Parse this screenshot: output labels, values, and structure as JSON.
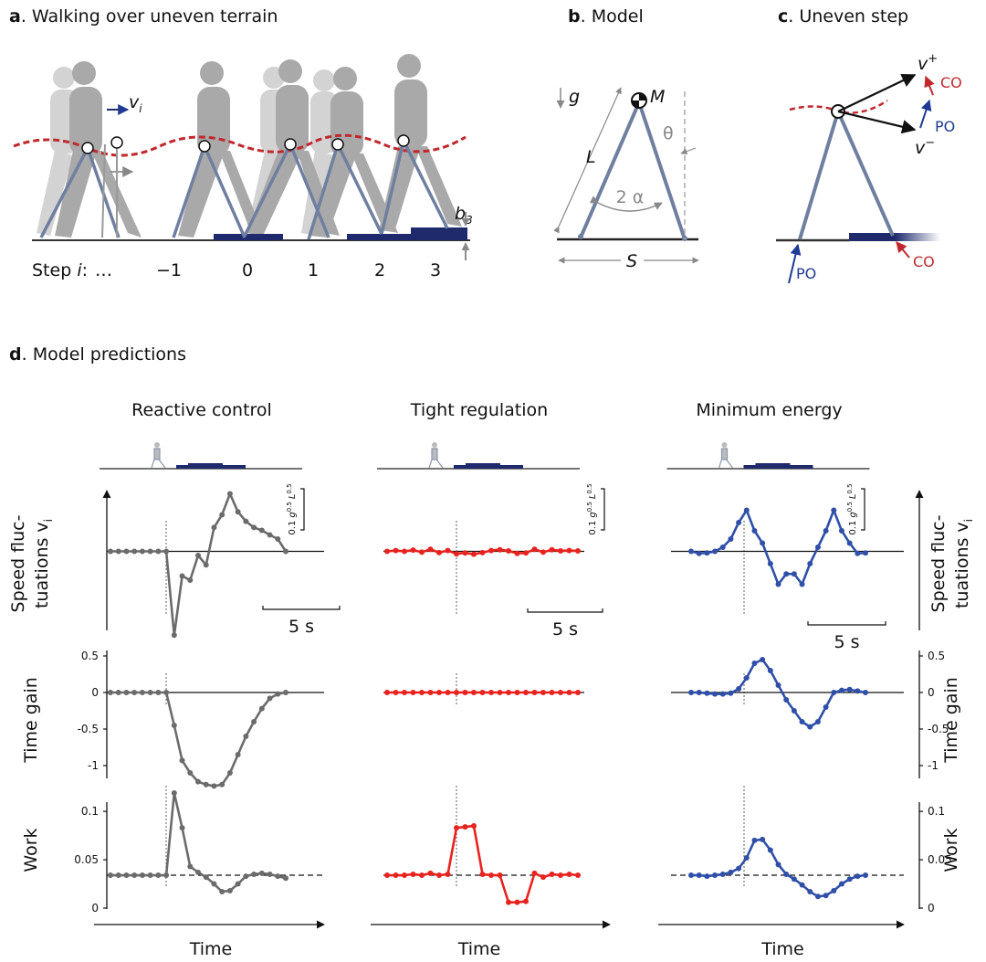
{
  "panels": {
    "a": {
      "letter": "a",
      "title": ". Walking over uneven terrain",
      "velocity": "v",
      "velocity_sub": "i",
      "height": "b",
      "height_sub": "3",
      "step_label": [
        "Step ",
        "i",
        ":"
      ],
      "ellipsis": "…",
      "steps": [
        "−1",
        "0",
        "1",
        "2",
        "3"
      ]
    },
    "b": {
      "letter": "b",
      "title": ". Model",
      "gravity": "g",
      "mass": "M",
      "length": "L",
      "angle": "θ",
      "leg_angle": "2 α",
      "step_length": "S"
    },
    "c": {
      "letter": "c",
      "title": ". Uneven step",
      "v_plus": "v",
      "v_plus_sup": "+",
      "v_minus": "v",
      "v_minus_sup": "−",
      "labels": [
        "CO",
        "PO",
        "PO",
        "CO"
      ]
    },
    "d": {
      "letter": "d",
      "title": ". Model predictions"
    }
  },
  "chart_data": [
    {
      "type": "line",
      "title": "Reactive control",
      "color": "#6b6b6b",
      "values": [
        0,
        0,
        0,
        0,
        0,
        0,
        0,
        0,
        -0.204,
        -0.06,
        -0.07,
        -0.01,
        -0.033,
        0.058,
        0.089,
        0.14,
        0.096,
        0.073,
        0.058,
        0.051,
        0.04,
        0.03,
        0
      ],
      "ylim": [
        -0.21,
        0.15
      ],
      "y_label": [
        "Speed fluc-",
        "tuations v"
      ],
      "y_label_sub": "i",
      "scale_bar": {
        "value": 0.1,
        "unit": [
          "g",
          "0.5",
          "L",
          "0.5"
        ]
      },
      "time_bar": "5 s"
    },
    {
      "type": "line",
      "title": "Tight regulation",
      "color": "#e8231f",
      "values": [
        0,
        0.002,
        0,
        0.003,
        -0.002,
        0.005,
        -0.003,
        0.002,
        -0.006,
        -0.004,
        -0.007,
        -0.003,
        0.002,
        0.004,
        0.001,
        -0.005,
        -0.004,
        0.005,
        -0.002,
        0.004,
        0.001,
        0.002,
        0.001
      ],
      "ylim": [
        -0.21,
        0.15
      ],
      "scale_bar": {
        "value": 0.1,
        "unit": [
          "g",
          "0.5",
          "L",
          "0.5"
        ]
      },
      "time_bar": "5 s"
    },
    {
      "type": "line",
      "title": "Minimum energy",
      "color": "#2f4fa8",
      "values": [
        0,
        -0.005,
        -0.004,
        0,
        0.01,
        0.03,
        0.07,
        0.1,
        0.05,
        0.02,
        -0.03,
        -0.08,
        -0.055,
        -0.055,
        -0.08,
        -0.03,
        0.01,
        0.05,
        0.1,
        0.05,
        0.02,
        -0.005,
        -0.004
      ],
      "ylim": [
        -0.21,
        0.15
      ],
      "y_label": [
        "Speed fluc-",
        "tuations v"
      ],
      "y_label_sub": "i",
      "scale_bar": {
        "value": 0.1,
        "unit": [
          "g",
          "0.5",
          "L",
          "0.5"
        ]
      },
      "time_bar": "5 s"
    },
    {
      "type": "line",
      "color": "#6b6b6b",
      "values": [
        0,
        0,
        0,
        0,
        0,
        0,
        0,
        0,
        -0.45,
        -0.93,
        -1.1,
        -1.22,
        -1.26,
        -1.28,
        -1.26,
        -1.1,
        -0.85,
        -0.6,
        -0.4,
        -0.22,
        -0.08,
        -0.02,
        0
      ],
      "ylim": [
        -1.3,
        0.55
      ],
      "yticks": [
        0.5,
        0,
        -0.5,
        -1
      ],
      "y_label": "Time gain"
    },
    {
      "type": "line",
      "color": "#e8231f",
      "values": [
        0,
        0,
        0,
        0,
        0,
        0,
        0,
        0,
        0,
        0,
        0,
        0,
        0,
        0,
        0,
        0,
        0,
        0,
        0,
        0,
        0,
        0,
        0
      ],
      "ylim": [
        -1.3,
        0.55
      ]
    },
    {
      "type": "line",
      "color": "#2f4fa8",
      "values": [
        0,
        0,
        -0.01,
        -0.02,
        -0.02,
        -0.01,
        0.05,
        0.2,
        0.4,
        0.45,
        0.3,
        0.1,
        -0.1,
        -0.25,
        -0.4,
        -0.47,
        -0.4,
        -0.2,
        0,
        0.03,
        0.04,
        0.02,
        0
      ],
      "ylim": [
        -1.3,
        0.55
      ],
      "yticks": [
        0.5,
        0,
        -0.5,
        -1
      ],
      "y_label": "Time gain"
    },
    {
      "type": "line",
      "color": "#6b6b6b",
      "values": [
        0.034,
        0.034,
        0.034,
        0.034,
        0.034,
        0.034,
        0.034,
        0.034,
        0.119,
        0.083,
        0.043,
        0.037,
        0.032,
        0.025,
        0.017,
        0.018,
        0.025,
        0.033,
        0.035,
        0.036,
        0.035,
        0.033,
        0.031
      ],
      "ylim": [
        0,
        0.12
      ],
      "yticks": [
        0,
        0.05,
        0.1
      ],
      "reference": 0.034,
      "y_label": "Work",
      "x_label": "Time"
    },
    {
      "type": "line",
      "color": "#e8231f",
      "values": [
        0.034,
        0.034,
        0.034,
        0.035,
        0.034,
        0.036,
        0.034,
        0.035,
        0.083,
        0.084,
        0.085,
        0.035,
        0.034,
        0.034,
        0.006,
        0.006,
        0.007,
        0.036,
        0.032,
        0.035,
        0.034,
        0.035,
        0.034
      ],
      "ylim": [
        0,
        0.12
      ],
      "reference": 0.034,
      "x_label": "Time"
    },
    {
      "type": "line",
      "color": "#2f4fa8",
      "values": [
        0.034,
        0.034,
        0.033,
        0.034,
        0.035,
        0.037,
        0.041,
        0.052,
        0.07,
        0.071,
        0.06,
        0.045,
        0.035,
        0.03,
        0.024,
        0.017,
        0.012,
        0.013,
        0.018,
        0.025,
        0.03,
        0.033,
        0.034
      ],
      "ylim": [
        0,
        0.12
      ],
      "yticks": [
        0,
        0.05,
        0.1
      ],
      "reference": 0.034,
      "y_label": "Work",
      "x_label": "Time"
    }
  ]
}
